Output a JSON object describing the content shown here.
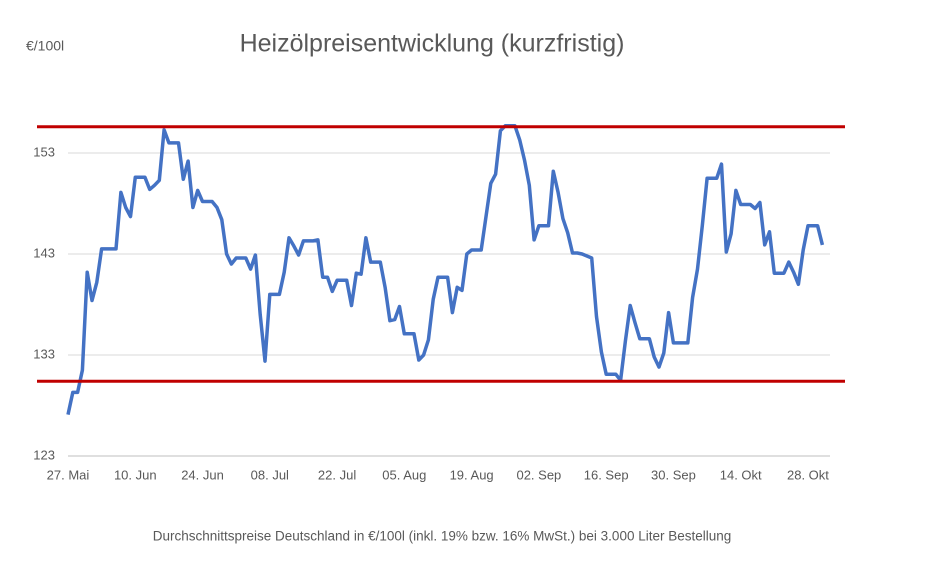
{
  "chart_data": {
    "type": "line",
    "title": "Heizölpreisentwicklung (kurzfristig)",
    "y_label": "€/100l",
    "footnote": "Durchschnittspreise Deutschland in €/100l (inkl. 19% bzw. 16%  MwSt.) bei 3.000 Liter Bestellung",
    "categories": [
      "27. Mai",
      null,
      null,
      null,
      null,
      null,
      null,
      null,
      null,
      null,
      null,
      null,
      null,
      null,
      "10. Jun",
      null,
      null,
      null,
      null,
      null,
      null,
      null,
      null,
      null,
      null,
      null,
      null,
      null,
      "24. Jun",
      null,
      null,
      null,
      null,
      null,
      null,
      null,
      null,
      null,
      null,
      null,
      null,
      null,
      "08. Jul",
      null,
      null,
      null,
      null,
      null,
      null,
      null,
      null,
      null,
      null,
      null,
      null,
      null,
      "22. Jul",
      null,
      null,
      null,
      null,
      null,
      null,
      null,
      null,
      null,
      null,
      null,
      null,
      null,
      "05. Aug",
      null,
      null,
      null,
      null,
      null,
      null,
      null,
      null,
      null,
      null,
      null,
      null,
      null,
      "19. Aug",
      null,
      null,
      null,
      null,
      null,
      null,
      null,
      null,
      null,
      null,
      null,
      null,
      null,
      "02. Sep",
      null,
      null,
      null,
      null,
      null,
      null,
      null,
      null,
      null,
      null,
      null,
      null,
      null,
      "16. Sep",
      null,
      null,
      null,
      null,
      null,
      null,
      null,
      null,
      null,
      null,
      null,
      null,
      null,
      "30. Sep",
      null,
      null,
      null,
      null,
      null,
      null,
      null,
      null,
      null,
      null,
      null,
      null,
      null,
      "14. Okt",
      null,
      null,
      null,
      null,
      null,
      null,
      null,
      null,
      null,
      null,
      null,
      null,
      null,
      "28. Okt",
      null,
      null,
      null
    ],
    "values": [
      127.1,
      129.3,
      129.3,
      131.5,
      141.2,
      138.4,
      140.2,
      143.5,
      143.5,
      143.5,
      143.5,
      149.1,
      147.6,
      146.7,
      150.6,
      150.6,
      150.6,
      149.4,
      149.8,
      150.3,
      155.3,
      154,
      154,
      154,
      150.4,
      152.2,
      147.6,
      149.3,
      148.2,
      148.2,
      148.2,
      147.6,
      146.4,
      143,
      142,
      142.6,
      142.6,
      142.6,
      141.5,
      142.9,
      137,
      132.4,
      139,
      139,
      139,
      141.2,
      144.6,
      143.8,
      142.9,
      144.3,
      144.3,
      144.3,
      144.4,
      140.7,
      140.7,
      139.3,
      140.4,
      140.4,
      140.4,
      137.9,
      141.1,
      141,
      144.6,
      142.2,
      142.2,
      142.2,
      139.7,
      136.4,
      136.5,
      137.8,
      135.1,
      135.1,
      135.1,
      132.5,
      133,
      134.5,
      138.5,
      140.7,
      140.7,
      140.7,
      137.2,
      139.7,
      139.4,
      143,
      143.4,
      143.4,
      143.4,
      146.7,
      150,
      150.9,
      155.2,
      155.7,
      155.7,
      155.7,
      154.3,
      152.3,
      149.8,
      144.4,
      145.8,
      145.8,
      145.8,
      151.2,
      149.1,
      146.5,
      145.1,
      143.1,
      143.1,
      143,
      142.8,
      142.6,
      136.8,
      133.3,
      131.1,
      131.1,
      131.1,
      130.5,
      134.4,
      137.9,
      136.2,
      134.6,
      134.6,
      134.6,
      132.8,
      131.8,
      133.2,
      137.2,
      134.2,
      134.2,
      134.2,
      134.2,
      138.7,
      141.5,
      145.8,
      150.5,
      150.5,
      150.5,
      151.9,
      143.2,
      145,
      149.3,
      147.9,
      147.9,
      147.9,
      147.5,
      148.1,
      143.9,
      145.2,
      141.1,
      141.1,
      141.1,
      142.2,
      141.2,
      140,
      143.4,
      145.8,
      145.8,
      145.8,
      143.9
    ],
    "color": "#4472c4",
    "ylim": [
      123,
      156
    ],
    "yticks": [
      123,
      133,
      143,
      153
    ],
    "grid": true,
    "reference_lines": [
      {
        "value": 155.6,
        "color": "#c00000"
      },
      {
        "value": 130.4,
        "color": "#c00000"
      }
    ]
  }
}
